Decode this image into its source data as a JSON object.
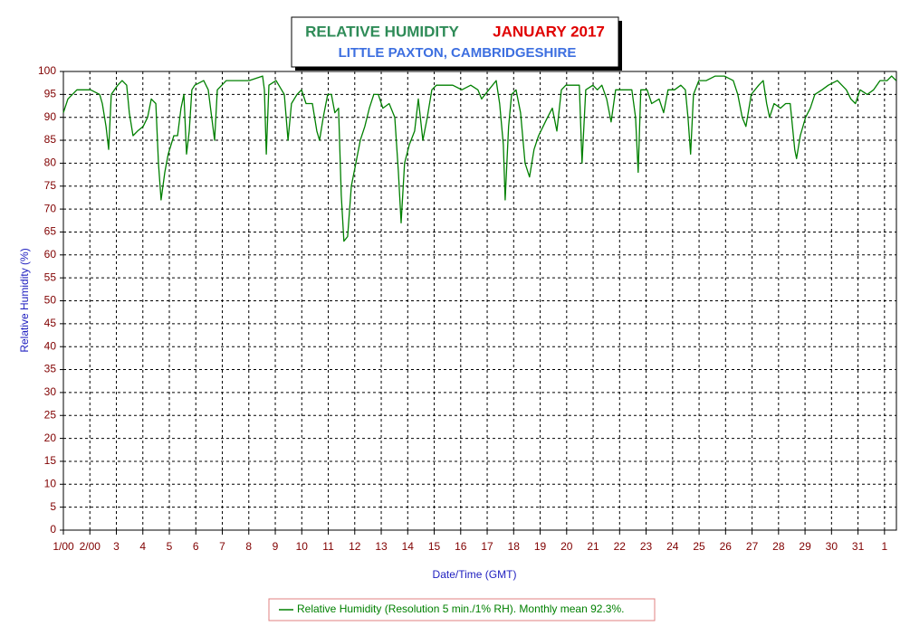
{
  "chart_data": {
    "type": "line",
    "title": "RELATIVE HUMIDITY",
    "period": "JANUARY 2017",
    "subtitle": "LITTLE PAXTON, CAMBRIDGESHIRE",
    "y_label": "Relative Humidity (%)",
    "x_label": "Date/Time (GMT)",
    "grid": true,
    "xlim": [
      0,
      31.45
    ],
    "ylim": [
      0,
      100
    ],
    "yticks": [
      0,
      5,
      10,
      15,
      20,
      25,
      30,
      35,
      40,
      45,
      50,
      55,
      60,
      65,
      70,
      75,
      80,
      85,
      90,
      95,
      100
    ],
    "xticks": [
      {
        "value": 0,
        "label": "1/00"
      },
      {
        "value": 1,
        "label": "2/00"
      },
      {
        "value": 2,
        "label": "3"
      },
      {
        "value": 3,
        "label": "4"
      },
      {
        "value": 4,
        "label": "5"
      },
      {
        "value": 5,
        "label": "6"
      },
      {
        "value": 6,
        "label": "7"
      },
      {
        "value": 7,
        "label": "8"
      },
      {
        "value": 8,
        "label": "9"
      },
      {
        "value": 9,
        "label": "10"
      },
      {
        "value": 10,
        "label": "11"
      },
      {
        "value": 11,
        "label": "12"
      },
      {
        "value": 12,
        "label": "13"
      },
      {
        "value": 13,
        "label": "14"
      },
      {
        "value": 14,
        "label": "15"
      },
      {
        "value": 15,
        "label": "16"
      },
      {
        "value": 16,
        "label": "17"
      },
      {
        "value": 17,
        "label": "18"
      },
      {
        "value": 18,
        "label": "19"
      },
      {
        "value": 19,
        "label": "20"
      },
      {
        "value": 20,
        "label": "21"
      },
      {
        "value": 21,
        "label": "22"
      },
      {
        "value": 22,
        "label": "23"
      },
      {
        "value": 23,
        "label": "24"
      },
      {
        "value": 24,
        "label": "25"
      },
      {
        "value": 25,
        "label": "26"
      },
      {
        "value": 26,
        "label": "27"
      },
      {
        "value": 27,
        "label": "28"
      },
      {
        "value": 28,
        "label": "29"
      },
      {
        "value": 29,
        "label": "30"
      },
      {
        "value": 30,
        "label": "31"
      },
      {
        "value": 31,
        "label": "1"
      }
    ],
    "x": [
      0,
      0.17,
      0.51,
      1.03,
      1.37,
      1.47,
      1.61,
      1.71,
      1.81,
      2.05,
      2.22,
      2.39,
      2.49,
      2.63,
      2.8,
      3.01,
      3.18,
      3.32,
      3.49,
      3.59,
      3.69,
      3.83,
      3.96,
      4.17,
      4.31,
      4.44,
      4.55,
      4.65,
      4.75,
      4.85,
      4.96,
      5.3,
      5.47,
      5.6,
      5.71,
      5.81,
      6.15,
      6.49,
      7.01,
      7.52,
      7.59,
      7.66,
      7.76,
      8.03,
      8.34,
      8.48,
      8.61,
      8.82,
      8.99,
      9.16,
      9.4,
      9.57,
      9.67,
      9.81,
      9.98,
      10.12,
      10.25,
      10.39,
      10.49,
      10.59,
      10.73,
      10.87,
      11.04,
      11.21,
      11.38,
      11.55,
      11.72,
      11.89,
      12.06,
      12.3,
      12.51,
      12.65,
      12.75,
      12.88,
      13.06,
      13.26,
      13.4,
      13.57,
      13.74,
      13.91,
      14.08,
      14.35,
      14.7,
      15.04,
      15.38,
      15.65,
      15.79,
      16.06,
      16.34,
      16.47,
      16.61,
      16.68,
      16.81,
      16.92,
      17.09,
      17.26,
      17.43,
      17.6,
      17.77,
      17.94,
      18.11,
      18.28,
      18.46,
      18.63,
      18.8,
      18.97,
      19.31,
      19.48,
      19.58,
      19.72,
      19.99,
      20.16,
      20.33,
      20.51,
      20.68,
      20.85,
      21.19,
      21.46,
      21.6,
      21.7,
      21.8,
      22.04,
      22.21,
      22.49,
      22.66,
      22.83,
      23.07,
      23.31,
      23.48,
      23.58,
      23.68,
      23.79,
      23.99,
      24.27,
      24.61,
      24.95,
      25.29,
      25.46,
      25.63,
      25.77,
      25.97,
      26.25,
      26.42,
      26.55,
      26.66,
      26.83,
      27.07,
      27.27,
      27.44,
      27.61,
      27.68,
      27.82,
      28.02,
      28.2,
      28.37,
      28.64,
      28.88,
      29.22,
      29.56,
      29.73,
      29.9,
      30.08,
      30.35,
      30.59,
      30.83,
      31.1,
      31.27,
      31.44
    ],
    "series": [
      {
        "name": "Relative Humidity (Resolution 5 min./1% RH). Monthly mean 92.3%.",
        "color": "#008000",
        "values": [
          91,
          94,
          96,
          96,
          95,
          93,
          88,
          83,
          95,
          97,
          98,
          97,
          91,
          86,
          87,
          88,
          90,
          94,
          93,
          80,
          72,
          78,
          82,
          86,
          86,
          92,
          95,
          82,
          87,
          96,
          97,
          98,
          96,
          90,
          85,
          96,
          98,
          98,
          98,
          99,
          96,
          82,
          97,
          98,
          95,
          85,
          93,
          95,
          96,
          93,
          93,
          87,
          85,
          90,
          95,
          95,
          91,
          92,
          73,
          63,
          64,
          75,
          80,
          85,
          88,
          92,
          95,
          95,
          92,
          93,
          90,
          78,
          67,
          80,
          84,
          87,
          94,
          85,
          90,
          96,
          97,
          97,
          97,
          96,
          97,
          96,
          94,
          96,
          98,
          93,
          84,
          72,
          88,
          95,
          96,
          91,
          80,
          77,
          83,
          86,
          88,
          90,
          92,
          87,
          96,
          97,
          97,
          97,
          80,
          96,
          97,
          96,
          97,
          94,
          89,
          96,
          96,
          96,
          90,
          78,
          96,
          96,
          93,
          94,
          91,
          96,
          96,
          97,
          96,
          90,
          82,
          95,
          98,
          98,
          99,
          99,
          98,
          95,
          90,
          88,
          95,
          97,
          98,
          93,
          90,
          93,
          92,
          93,
          93,
          83,
          81,
          86,
          90,
          92,
          95,
          96,
          97,
          98,
          96,
          94,
          93,
          96,
          95,
          96,
          98,
          98,
          99,
          98
        ]
      }
    ]
  }
}
